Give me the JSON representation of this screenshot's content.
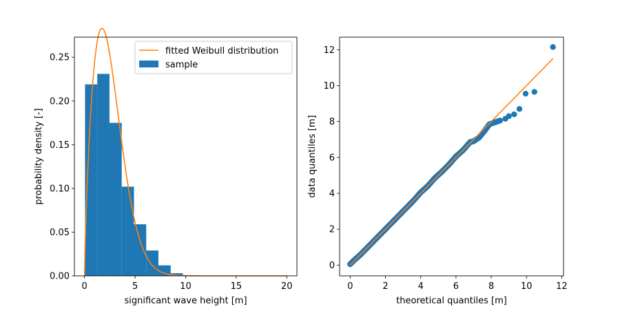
{
  "chart_data": [
    {
      "type": "bar",
      "panel": "left",
      "xlabel": "significant wave height [m]",
      "ylabel": "probability density [-]",
      "xlim": [
        -1.0,
        21.0
      ],
      "ylim": [
        0.0,
        0.273
      ],
      "xticks": [
        0,
        5,
        10,
        15,
        20
      ],
      "yticks": [
        0.0,
        0.05,
        0.1,
        0.15,
        0.2,
        0.25
      ],
      "xtick_labels": [
        "0",
        "5",
        "10",
        "15",
        "20"
      ],
      "ytick_labels": [
        "0.00",
        "0.05",
        "0.10",
        "0.15",
        "0.20",
        "0.25"
      ],
      "legend": {
        "placement": "top-right",
        "entries": [
          "fitted Weibull distribution",
          "sample"
        ]
      },
      "histogram": {
        "name": "sample",
        "color": "#1f77b4",
        "bin_edges": [
          0.05,
          1.26,
          2.47,
          3.68,
          4.89,
          6.1,
          7.31,
          8.52,
          9.73
        ],
        "values": [
          0.219,
          0.231,
          0.175,
          0.102,
          0.059,
          0.029,
          0.012,
          0.003
        ]
      },
      "fit": {
        "name": "fitted Weibull distribution",
        "color": "#ff7f0e",
        "scale": 2.8,
        "shape": 1.75,
        "x_range": [
          0.0,
          20.0
        ]
      }
    },
    {
      "type": "scatter",
      "panel": "right",
      "xlabel": "theoretical quantiles [m]",
      "ylabel": "data quantiles [m]",
      "xlim": [
        -0.6,
        12.1
      ],
      "ylim": [
        -0.6,
        12.7
      ],
      "xticks": [
        0,
        2,
        4,
        6,
        8,
        10,
        12
      ],
      "yticks": [
        0,
        2,
        4,
        6,
        8,
        10,
        12
      ],
      "xtick_labels": [
        "0",
        "2",
        "4",
        "6",
        "8",
        "10",
        "12"
      ],
      "ytick_labels": [
        "0",
        "2",
        "4",
        "6",
        "8",
        "10",
        "12"
      ],
      "points": {
        "color": "#1f77b4",
        "x": [
          0.0,
          0.2,
          0.4,
          0.6,
          0.8,
          1.0,
          1.3,
          1.6,
          2.0,
          2.4,
          2.8,
          3.2,
          3.6,
          4.0,
          4.4,
          4.8,
          5.2,
          5.6,
          6.0,
          6.4,
          6.8,
          7.0,
          7.3,
          7.6,
          7.9,
          8.2,
          8.5,
          8.8,
          9.0,
          9.3,
          9.6,
          9.95,
          10.45,
          11.5
        ],
        "y": [
          0.05,
          0.25,
          0.42,
          0.6,
          0.8,
          1.0,
          1.3,
          1.6,
          2.0,
          2.4,
          2.8,
          3.2,
          3.6,
          4.05,
          4.4,
          4.85,
          5.2,
          5.6,
          6.05,
          6.4,
          6.85,
          6.9,
          7.1,
          7.45,
          7.85,
          7.95,
          8.05,
          8.15,
          8.3,
          8.4,
          8.7,
          9.55,
          9.65,
          12.15
        ]
      },
      "reference_line": {
        "color": "#ff7f0e",
        "x": [
          0.0,
          11.5
        ],
        "y": [
          0.0,
          11.5
        ]
      }
    }
  ]
}
